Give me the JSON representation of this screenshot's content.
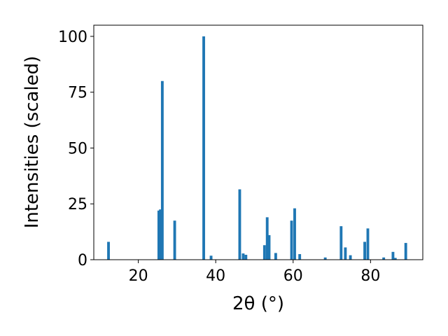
{
  "chart_data": {
    "type": "bar",
    "title": "",
    "xlabel": "2θ (°)",
    "ylabel": "Intensities (scaled)",
    "xlim": [
      8.5,
      93.5
    ],
    "ylim": [
      0,
      105
    ],
    "xticks": [
      20,
      40,
      60,
      80
    ],
    "yticks": [
      0,
      25,
      50,
      75,
      100
    ],
    "grid": false,
    "color": "#1f77b4",
    "bar_width": 0.7,
    "x": [
      12.3,
      25.3,
      25.7,
      26.2,
      29.4,
      36.9,
      38.8,
      46.2,
      47.1,
      47.8,
      52.6,
      53.3,
      53.8,
      55.5,
      59.6,
      60.4,
      61.7,
      68.3,
      72.4,
      73.5,
      74.8,
      78.5,
      79.3,
      83.4,
      85.8,
      86.4,
      89.1
    ],
    "values": [
      8,
      22,
      22.5,
      80,
      17.5,
      100,
      1.8,
      31.5,
      2.8,
      2.2,
      6.5,
      19,
      11,
      3,
      17.5,
      23,
      2.5,
      1,
      15,
      5.5,
      2,
      8,
      14,
      1,
      3.5,
      0.8,
      7.5
    ]
  }
}
